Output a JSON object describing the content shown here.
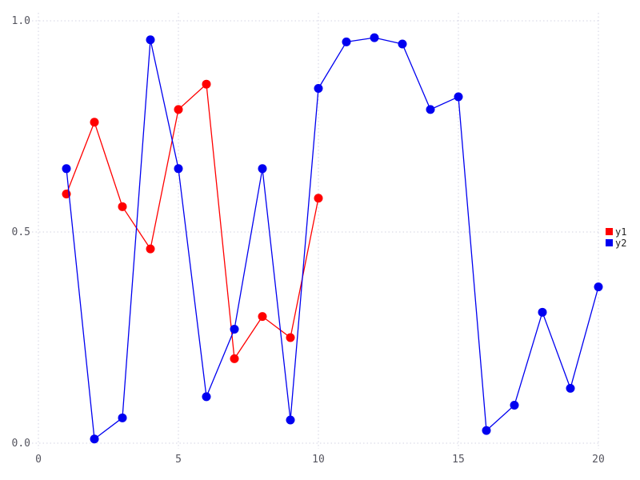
{
  "chart_data": {
    "type": "line",
    "title": "",
    "xlabel": "",
    "ylabel": "",
    "xlim": [
      0,
      20
    ],
    "ylim": [
      0.0,
      1.0
    ],
    "x_ticks": {
      "values": [
        0,
        5,
        10,
        15,
        20
      ],
      "labels": [
        "0",
        "5",
        "10",
        "15",
        "20"
      ]
    },
    "y_ticks": {
      "values": [
        0.0,
        0.5,
        1.0
      ],
      "labels": [
        "0.0",
        "0.5",
        "1.0"
      ]
    },
    "grid": "dotted",
    "legend_position": "right-outside",
    "marker": "circle",
    "series": [
      {
        "name": "y1",
        "color": "#ff0000",
        "x": [
          1,
          2,
          3,
          4,
          5,
          6,
          7,
          8,
          9,
          10
        ],
        "values": [
          0.59,
          0.76,
          0.56,
          0.46,
          0.79,
          0.85,
          0.2,
          0.3,
          0.25,
          0.58
        ]
      },
      {
        "name": "y2",
        "color": "#0000f0",
        "x": [
          1,
          2,
          3,
          4,
          5,
          6,
          7,
          8,
          9,
          10,
          11,
          12,
          13,
          14,
          15,
          16,
          17,
          18,
          19,
          20
        ],
        "values": [
          0.65,
          0.01,
          0.06,
          0.955,
          0.65,
          0.11,
          0.27,
          0.65,
          0.055,
          0.84,
          0.95,
          0.96,
          0.945,
          0.79,
          0.82,
          0.03,
          0.09,
          0.31,
          0.13,
          0.37
        ]
      }
    ]
  },
  "legend": {
    "items": [
      {
        "label": "y1",
        "color": "#ff0000"
      },
      {
        "label": "y2",
        "color": "#0000f0"
      }
    ]
  },
  "colors": {
    "background": "#ffffff",
    "gridline": "#d3d3e2",
    "tick_label": "#55555f",
    "legend_text": "#222222"
  }
}
